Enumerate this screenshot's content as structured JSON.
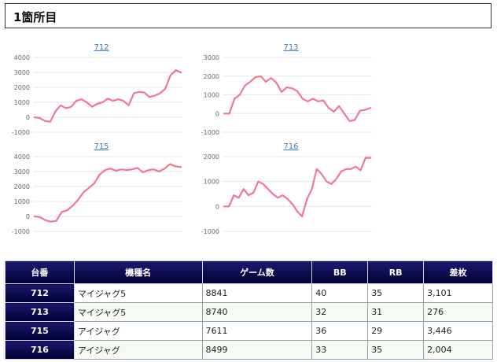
{
  "header": {
    "title": "1箇所目"
  },
  "chart_data": [
    {
      "type": "line",
      "title": "712",
      "ylim": [
        -1000,
        4000
      ],
      "yticks": [
        -1000,
        0,
        1000,
        2000,
        3000,
        4000
      ],
      "color": "#f07890",
      "values": [
        0,
        -50,
        -250,
        -300,
        400,
        800,
        600,
        700,
        1100,
        1200,
        1000,
        700,
        900,
        1000,
        1250,
        1100,
        1200,
        1100,
        800,
        1600,
        1700,
        1650,
        1350,
        1450,
        1600,
        1900,
        2800,
        3150,
        3000
      ]
    },
    {
      "type": "line",
      "title": "713",
      "ylim": [
        -1000,
        3000
      ],
      "yticks": [
        -1000,
        0,
        1000,
        2000,
        3000
      ],
      "color": "#f07890",
      "values": [
        0,
        0,
        800,
        1000,
        1500,
        1700,
        1950,
        2000,
        1700,
        1900,
        1650,
        1150,
        1400,
        1350,
        1200,
        800,
        650,
        800,
        650,
        700,
        300,
        100,
        400,
        0,
        -400,
        -350,
        150,
        200,
        300
      ]
    },
    {
      "type": "line",
      "title": "715",
      "ylim": [
        -1000,
        4000
      ],
      "yticks": [
        -1000,
        0,
        1000,
        2000,
        3000,
        4000
      ],
      "color": "#f07890",
      "values": [
        0,
        -50,
        -250,
        -350,
        -300,
        300,
        400,
        700,
        1100,
        1600,
        1900,
        2200,
        2800,
        3100,
        3200,
        3050,
        3150,
        3100,
        3150,
        3250,
        2950,
        3100,
        3150,
        3000,
        3200,
        3500,
        3350,
        3300
      ]
    },
    {
      "type": "line",
      "title": "716",
      "ylim": [
        -1000,
        2000
      ],
      "yticks": [
        -1000,
        0,
        1000,
        2000
      ],
      "color": "#f07890",
      "values": [
        0,
        0,
        450,
        350,
        700,
        450,
        550,
        1000,
        900,
        700,
        500,
        350,
        450,
        300,
        100,
        -200,
        -400,
        300,
        700,
        1500,
        1300,
        1000,
        900,
        1100,
        1400,
        1500,
        1500,
        1600,
        1450,
        1950,
        1950
      ]
    }
  ],
  "table": {
    "headers": [
      "台番",
      "機種名",
      "ゲーム数",
      "BB",
      "RB",
      "差枚"
    ],
    "rows": [
      [
        "712",
        "マイジャグ5",
        "8841",
        "40",
        "35",
        "3,101"
      ],
      [
        "713",
        "マイジャグ5",
        "8740",
        "32",
        "31",
        "276"
      ],
      [
        "715",
        "アイジャグ",
        "7611",
        "36",
        "29",
        "3,446"
      ],
      [
        "716",
        "アイジャグ",
        "8499",
        "33",
        "35",
        "2,004"
      ]
    ]
  }
}
